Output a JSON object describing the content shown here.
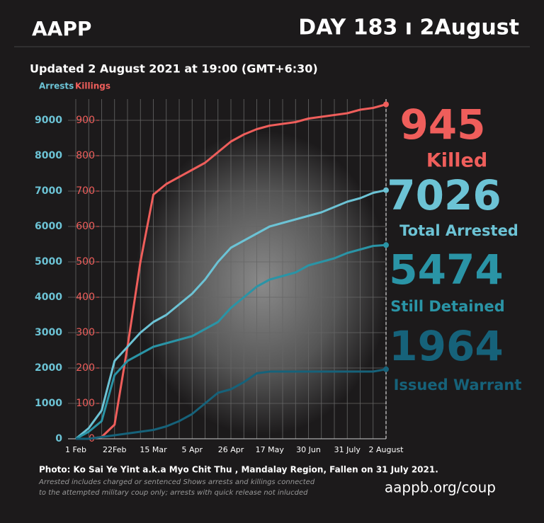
{
  "header": {
    "brand": "AAPP",
    "day": "DAY 183 ı 2August",
    "updated": "Updated 2 August 2021 at 19:00 (GMT+6:30)"
  },
  "chart_data": {
    "type": "line",
    "y_label": "Arrests",
    "y2_label": "Killings",
    "categories": [
      "1 Feb",
      null,
      null,
      "22Feb",
      null,
      null,
      "15 Mar",
      null,
      null,
      "5 Apr",
      null,
      null,
      "26 Apr",
      null,
      null,
      "17 May",
      null,
      null,
      "30 Jun",
      null,
      null,
      "31 July",
      null,
      null,
      "2 August"
    ],
    "ylim": [
      0,
      9600
    ],
    "yticks": [
      0,
      1000,
      2000,
      3000,
      4000,
      5000,
      6000,
      7000,
      8000,
      9000
    ],
    "y2lim": [
      0,
      960
    ],
    "y2ticks": [
      0,
      100,
      200,
      300,
      400,
      500,
      600,
      700,
      800,
      900
    ],
    "grid": true,
    "series": [
      {
        "name": "Killed",
        "callout": "945",
        "color": "#ef5e5b",
        "axis": "y2",
        "values": [
          0,
          0,
          5,
          40,
          260,
          500,
          690,
          720,
          740,
          760,
          780,
          810,
          840,
          860,
          875,
          885,
          890,
          895,
          905,
          910,
          915,
          920,
          930,
          935,
          945
        ]
      },
      {
        "name": "Total Arrested",
        "callout": "7026",
        "color": "#6cc3d5",
        "values": [
          0,
          300,
          800,
          2200,
          2600,
          3000,
          3300,
          3500,
          3800,
          4100,
          4500,
          5000,
          5400,
          5600,
          5800,
          6000,
          6100,
          6200,
          6300,
          6400,
          6550,
          6700,
          6800,
          6950,
          7026
        ]
      },
      {
        "name": "Still Detained",
        "callout": "5474",
        "color": "#2a94a6",
        "values": [
          0,
          200,
          500,
          1800,
          2200,
          2400,
          2600,
          2700,
          2800,
          2900,
          3100,
          3300,
          3700,
          4000,
          4300,
          4500,
          4600,
          4700,
          4900,
          5000,
          5100,
          5250,
          5350,
          5450,
          5474
        ]
      },
      {
        "name": "Issued Warrant",
        "callout": "1964",
        "color": "#16627a",
        "values": [
          0,
          0,
          50,
          100,
          150,
          200,
          250,
          350,
          500,
          700,
          1000,
          1300,
          1400,
          1600,
          1850,
          1900,
          1900,
          1900,
          1900,
          1900,
          1900,
          1900,
          1900,
          1900,
          1964
        ]
      }
    ]
  },
  "footer": {
    "photo": "Photo: Ko Sai Ye Yint a.k.a Myo Chit Thu , Mandalay Region, Fallen on 31 July 2021.",
    "note1": "Arrested includes charged or sentenced Shows arrests and killings connected",
    "note2": "to the attempted military coup only; arrests with quick release not inlucded",
    "url": "aappb.org/coup"
  }
}
